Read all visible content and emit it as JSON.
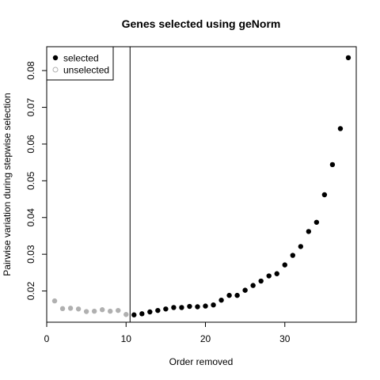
{
  "chart_data": {
    "type": "scatter",
    "title": "Genes selected using geNorm",
    "xlabel": "Order removed",
    "ylabel": "Pairwise variation during stepwise selection",
    "xlim": [
      0,
      39
    ],
    "ylim": [
      0.0115,
      0.0865
    ],
    "xticks": [
      0,
      10,
      20,
      30
    ],
    "yticks": [
      0.02,
      0.03,
      0.04,
      0.05,
      0.06,
      0.07,
      0.08
    ],
    "cutoff_x": 10.5,
    "legend_position": "top-left",
    "series": [
      {
        "name": "selected",
        "color": "#000000",
        "x": [
          11,
          12,
          13,
          14,
          15,
          16,
          17,
          18,
          19,
          20,
          21,
          22,
          23,
          24,
          25,
          26,
          27,
          28,
          29,
          30,
          31,
          32,
          33,
          34,
          35,
          36,
          37,
          38
        ],
        "y": [
          0.0135,
          0.0138,
          0.0143,
          0.0147,
          0.0151,
          0.0155,
          0.0155,
          0.0158,
          0.0157,
          0.0159,
          0.0162,
          0.0175,
          0.0188,
          0.0188,
          0.0202,
          0.0215,
          0.0227,
          0.0241,
          0.0247,
          0.0271,
          0.0297,
          0.0321,
          0.0362,
          0.0387,
          0.0462,
          0.0544,
          0.0642,
          0.0835
        ]
      },
      {
        "name": "unselected",
        "color": "#b0b0b0",
        "x": [
          1,
          2,
          3,
          4,
          5,
          6,
          7,
          8,
          9,
          10
        ],
        "y": [
          0.0173,
          0.0152,
          0.0153,
          0.0151,
          0.0144,
          0.0145,
          0.0149,
          0.0145,
          0.0147,
          0.0136
        ]
      }
    ]
  }
}
